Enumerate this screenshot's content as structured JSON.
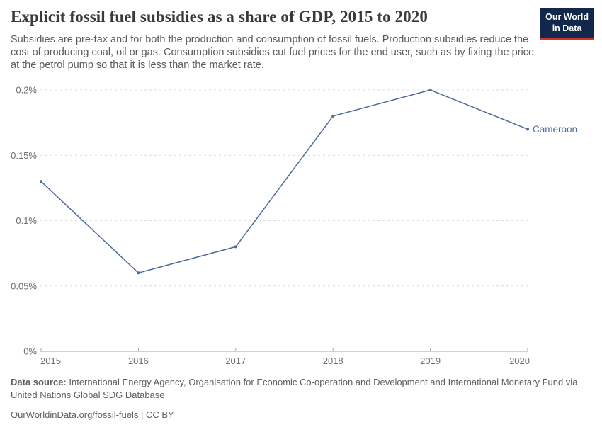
{
  "header": {
    "title": "Explicit fossil fuel subsidies as a share of GDP, 2015 to 2020",
    "subtitle": "Subsidies are pre-tax and for both the production and consumption of fossil fuels. Production subsidies reduce the cost of producing coal, oil or gas. Consumption subsidies cut fuel prices for the end user, such as by fixing the price at the petrol pump so that it is less than the market rate.",
    "logo": {
      "line1": "Our World",
      "line2": "in Data",
      "bg_color": "#12284a",
      "accent_color": "#d4322a",
      "text_color": "#ffffff"
    }
  },
  "chart_data": {
    "type": "line",
    "title": "Explicit fossil fuel subsidies as a share of GDP, 2015 to 2020",
    "x": [
      2015,
      2016,
      2017,
      2018,
      2019,
      2020
    ],
    "xtick_labels": [
      "2015",
      "2016",
      "2017",
      "2018",
      "2019",
      "2020"
    ],
    "series": [
      {
        "name": "Cameroon",
        "values": [
          0.13,
          0.06,
          0.08,
          0.18,
          0.2,
          0.17
        ],
        "color": "#4C6A9C"
      }
    ],
    "unit": "% of GDP",
    "ylim": [
      0,
      0.2
    ],
    "yticks": [
      0,
      0.05,
      0.1,
      0.15,
      0.2
    ],
    "ytick_labels": [
      "0%",
      "0.05%",
      "0.1%",
      "0.15%",
      "0.2%"
    ],
    "grid": "dashed-horizontal",
    "legend_position": "end-of-line",
    "style": {
      "gridline_color": "#dedede",
      "axis_color": "#a5a5a5",
      "tick_label_color": "#6e6e6e"
    }
  },
  "footer": {
    "data_source_label": "Data source:",
    "data_source_text": " International Energy Agency, Organisation for Economic Co-operation and Development and International Monetary Fund via United Nations Global SDG Database",
    "citation": "OurWorldinData.org/fossil-fuels | CC BY"
  }
}
